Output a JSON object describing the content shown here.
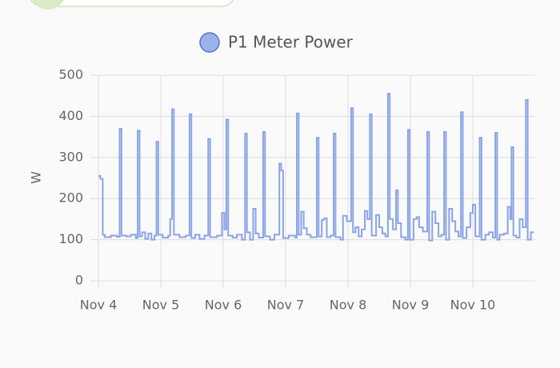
{
  "chart_data": {
    "type": "step-line",
    "y_label": "W",
    "series": [
      {
        "name": "P1 Meter Power",
        "color": "#8aa4e6",
        "x": [
          0,
          0.03,
          0.07,
          0.1,
          0.2,
          0.3,
          0.34,
          0.37,
          0.45,
          0.52,
          0.6,
          0.63,
          0.66,
          0.7,
          0.75,
          0.8,
          0.85,
          0.9,
          0.93,
          0.96,
          1.03,
          1.12,
          1.15,
          1.18,
          1.21,
          1.3,
          1.4,
          1.46,
          1.49,
          1.55,
          1.62,
          1.7,
          1.76,
          1.79,
          1.9,
          1.98,
          2.02,
          2.05,
          2.08,
          2.15,
          2.22,
          2.3,
          2.35,
          2.38,
          2.43,
          2.48,
          2.52,
          2.57,
          2.64,
          2.67,
          2.75,
          2.82,
          2.9,
          2.93,
          2.96,
          3.05,
          3.15,
          3.18,
          3.21,
          3.25,
          3.29,
          3.34,
          3.4,
          3.5,
          3.53,
          3.58,
          3.62,
          3.66,
          3.72,
          3.77,
          3.8,
          3.88,
          3.92,
          3.98,
          4.05,
          4.08,
          4.12,
          4.17,
          4.22,
          4.27,
          4.31,
          4.35,
          4.38,
          4.45,
          4.5,
          4.55,
          4.6,
          4.64,
          4.67,
          4.72,
          4.77,
          4.8,
          4.85,
          4.92,
          4.96,
          4.99,
          5.05,
          5.1,
          5.14,
          5.2,
          5.27,
          5.3,
          5.35,
          5.4,
          5.45,
          5.5,
          5.54,
          5.57,
          5.62,
          5.67,
          5.72,
          5.77,
          5.81,
          5.84,
          5.9,
          5.96,
          6.0,
          6.04,
          6.11,
          6.14,
          6.2,
          6.26,
          6.32,
          6.36,
          6.39,
          6.43,
          6.5,
          6.56,
          6.6,
          6.62,
          6.65,
          6.7,
          6.75,
          6.8,
          6.85,
          6.88,
          6.93,
          6.97
        ],
        "values": [
          255,
          248,
          112,
          106,
          110,
          107,
          370,
          110,
          108,
          112,
          104,
          365,
          108,
          118,
          102,
          115,
          100,
          110,
          338,
          112,
          105,
          110,
          150,
          417,
          112,
          106,
          110,
          405,
          104,
          112,
          102,
          110,
          345,
          106,
          110,
          165,
          125,
          392,
          110,
          105,
          112,
          100,
          358,
          118,
          100,
          175,
          115,
          105,
          362,
          108,
          100,
          112,
          285,
          268,
          104,
          110,
          105,
          407,
          112,
          168,
          128,
          112,
          106,
          348,
          108,
          148,
          152,
          106,
          110,
          358,
          106,
          100,
          158,
          145,
          420,
          118,
          130,
          108,
          125,
          170,
          150,
          405,
          110,
          160,
          130,
          115,
          108,
          455,
          150,
          125,
          220,
          140,
          106,
          100,
          367,
          100,
          150,
          155,
          130,
          120,
          362,
          98,
          168,
          140,
          108,
          112,
          362,
          100,
          175,
          145,
          120,
          108,
          410,
          104,
          130,
          165,
          185,
          108,
          348,
          100,
          112,
          118,
          105,
          360,
          100,
          112,
          115,
          180,
          150,
          325,
          110,
          105,
          150,
          130,
          440,
          100,
          118,
          120
        ]
      }
    ],
    "xlim": [
      0,
      7
    ],
    "xticks": [
      {
        "value": 0,
        "label": "Nov 4"
      },
      {
        "value": 1,
        "label": "Nov 5"
      },
      {
        "value": 2,
        "label": "Nov 6"
      },
      {
        "value": 3,
        "label": "Nov 7"
      },
      {
        "value": 4,
        "label": "Nov 8"
      },
      {
        "value": 5,
        "label": "Nov 9"
      },
      {
        "value": 6,
        "label": "Nov 10"
      }
    ],
    "ylim": [
      0,
      500
    ],
    "yticks": [
      0,
      100,
      200,
      300,
      400,
      500
    ],
    "grid": true
  }
}
